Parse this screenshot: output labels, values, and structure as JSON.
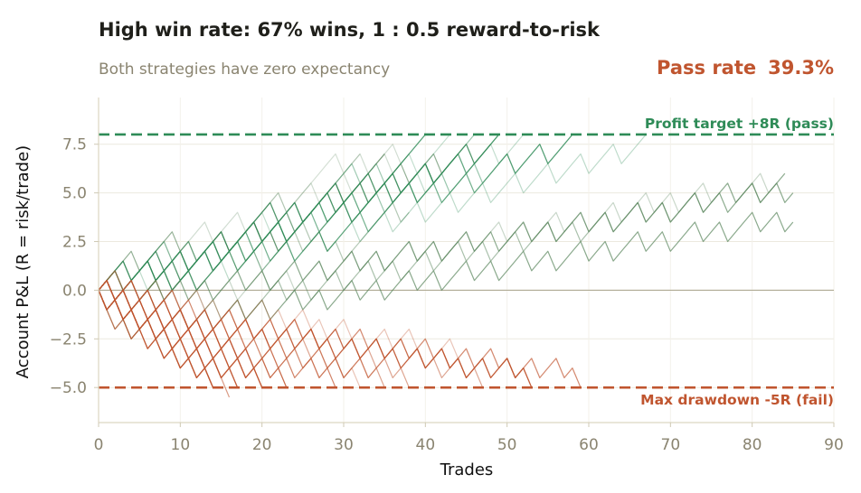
{
  "chart_data": {
    "type": "line",
    "title": "High win rate: 67% wins, 1 : 0.5 reward-to-risk",
    "subtitle": "Both strategies have zero expectancy",
    "pass_rate_label": "Pass rate",
    "pass_rate_value": "39.3%",
    "xlabel": "Trades",
    "ylabel": "Account P&L (R = risk/trade)",
    "xlim": [
      0,
      90
    ],
    "ylim": [
      -6.8,
      9.9
    ],
    "xticks": [
      0,
      10,
      20,
      30,
      40,
      50,
      60,
      70,
      80,
      90
    ],
    "yticks": [
      -5.0,
      -2.5,
      0.0,
      2.5,
      5.0,
      7.5
    ],
    "grid": true,
    "profit_target": {
      "value": 8,
      "label": "Profit target +8R  (pass)",
      "color": "#2e8b57"
    },
    "max_drawdown": {
      "value": -5,
      "label": "Max drawdown -5R  (fail)",
      "color": "#c0552f"
    },
    "win_step_R": 0.5,
    "loss_step_R": -1,
    "colors": {
      "pass": "#2e8b57",
      "fail": "#c0552f",
      "neutral": "#7d7a5a",
      "zero_line": "#b0ab95"
    },
    "paths": [
      "++-+++-+-+++++-+++++++-++++++-++",
      "+++-+++++-+-+++-+++-+++-+++++-+++++",
      "+-++-+++++-++-+++++-+-++-++-+-++++++-+",
      "-+++-+++++-+++-++++-++-+++++++-++++-+",
      "++++-+-++-+++++-+++++-++-++++-+++-+++-+++-",
      "+-++-+++-++-++++-++-+++++-++++-++++-++++-+++",
      "++-+++++-++++-+++-++++-+++-+++++-+++-+",
      "-++++++-++-++++-+++-+-++++++-+++-+++-+++-++++-++",
      "+++-++++-+-+++-++++-++++-++++++-++-+++++-+++-+++-++",
      "-+-+++++-+++++-+++++-+-++++-+++-++++++-++++-++-+++-++++-+",
      "+++-+++-+-+++++-+++++-++-++++-+++-++++++-++-+++-++++-+++-++-+",
      "++-+++-+++-++-+++++-++-+++++-+++-++-++++-+++++-+++-+++-++++-+++-+",
      "-+++-+++-+++++-++-+++-++++-++++-+++-++-+++++-+++-++++-++-+++++-+++",
      "+-++++-+-++++-+++-++++-++++-++-+++++-+++-++++-+++-+++-++++-+++-++++-++",
      "++-+++-++++-+-++++-+++-+++++-++-+++-++++-+++-++++-++-+++++-+++-++++-++-+++",
      "+-+++-++++-+++-++-+++++-+++-++++-+++-++-++++-+++++-+++-++-+++++-++++-+++-+++",
      "-+-++++-+++-++++-+++-++-+++-++++-+++++-++-+++-++++-+++-+++++-++-++++-+++-++++-+",
      "++-+++-+++-+++-+++-+++-+++-+++-+++-+++-+++-+++-+++-+++-+++-+++-+++-+++-+++-+++-+++-+",
      "-++-+++-+++-+++-+++-+++-+++-+++-+++-+++-+++-+++-+++-+++-+++-+++-+++-+++-+++-+++-+++-+",
      "+-+-++-+++-++-+++-++-+++-++-+++-++-+++-++-+++-++-+++-++-+++-++-+++-++-+++-++-+++-++-+",
      "--+-++-+++-+++-++-++++-++-+++-+++-++-+++-+++-++-+++-+++-++-+++-+++-++-+++-+++-++-+++",
      "+--++-+++-++-+++-+++-++-+++-+++-++-+++-++-+++-+++-++-+++-++-+++-+++-++-+++-++-+++-++",
      "-+--++-+++-++-+++-++-+++-++-+++-++-+++-++-+++-++-+++-++-+++-++-+++-++-+++-++-+++-++-+",
      "+-+-+-++-+-++-++-+-++-++-+-++-++-+-++-++-+-++-++-+-++-++-+-++-++-+-++-++-+-++-++-+-++",
      "-+-+-++-++-+-++-++-+-++-++-+-++-++-+-++-++-+-++-++-+-++-++-+-++-++-+-++-++-+-++-++-+-",
      "+-+--++-++-+-++-++-+-++-++-+-++-++-+-++-++-+-++-++-+-++-++-+-++-++-+-++-++-+-++-++-+",
      "-++-+-+-++-++-+-++-+-++-++-+-++-+-++-++-+-++-+-++-++-+-++-+-++-++-+-++-+-++-++-+-++-+",
      "++-+-++-+-++-+-++-++-+-++-+-++-+-++-++-+-++-+-++-+-++-++-+-++-+-++-+-++-++-+-++-+-++",
      "+-++-+-++-+-+-++-+-++-++-+-++-+-++-++-+-++-+-++-++-+-++-+-++-++-+-++-+-++-++-+-++-+-",
      "-+-++-+-++-+-+-++-++-+-++-+-+-++-++-+-++-+-+-++-++-+-++-+-+-++-++-+-++-+-+-++-++-+-+",
      "--++-+-++-+-++-+-++-+-++-+-++-+-++-+-++-+-++-+-++-+-++-+-++-+-++-+-++-+-++-+-++-+-++",
      "-+-+-+-+-++-+-++-+-++-+-++-+-++-+-++-+-++-+-++-+-++-+-++-+-++-+-++-+-++-+-++-+-++-+-",
      "+--+-++-+-++-+-++-+-++-+-++-+-++-+-++-+-++-+-++-+-++-+-++-+-++-+-++-+-++-+-++-+-++-+",
      "-++--+-+-+-+-+-++-+-+-++-+-++-+-++-+-++-+-++-+-++-+-++-+-++-+-++-+-++-+-++-+-++-+-++",
      "+-+-+-++--+-+-+-+-+-+-+-+-+-+-+-+-+-+-+-",
      "-+-+-+--+-+-+-+-+-+-+-+-+-",
      "+--+-+-+--+-+-+-+-+-+-+-+-+-+-+-+-+-+-+-+-+-+-+-+-+-+-+-+-+-+-+-+-+",
      "-+--+-+-+-+-+--+-+-+-+-+-+-+-+-+-+-+-+-+-+-+-",
      "--+-+-+-+-+-+-+-+-+-+-+-+-+--+-+-+-+-+-+-+-+-+-+-+-+-+-",
      "+-+-+-+-+-+--+-+-+-+-+-+-+-+--+-+-+-+-+-+-+-",
      "-+-+-+-+-+-+-+-+-+-+-+-+-+-+-+-+-+-+-+-+-+-+-+-+-+-+-+-+-+-+-+-+-+-+-+-+-+-+-+-+-+-+-",
      "+-+-+-+-+-+-+-+-+-+-+-+-+-+-+-+-+-+-+-+-+-+-+-+-+-+-+-+-+-+-+-+-+-+-+-+-+-+-+-+-+-+-+",
      "+-+--+-+-+-+--+-+-+-+--+-+-+-+-",
      "-+-+--+-+-+-+--+-+-+-+-+--+-+-+-+-+-",
      "+--+-+-+-+-+-+--+-+-+-+-+-+-+--+-+-+-+-+-+-+-",
      "-+-+-+-+-+-+-+-+-+--+-+-+-+-+-+-+-+-+--+-+-+-+-+-+-+-+-+-+-",
      "+-+-+-+-+-+-+-+-+-+-+-+-+-+-+-+--+-+-+-+-+-+-+-+-+-+-+-+-+-+--+-+-+-+-+",
      "-+-+-+-+-+-+-+-+-+-+-+-+-+-+-+-+-+-+-+-+-+-+--+-+-+-+-+-+-+-+-+-+-+-+-+-+-+-+-+-+-+-",
      "++-+-+-+-+-+-+-+-+-+-+-+-+-+-+-+-+-+-+-+-+-+-+-+-+-+-+-+-+-+-+-+-+--+-+-+-+-+-+-+-+-",
      "+-++-+-+-+-+-+-+-+-+-+-+-+-+-+-+-+-+-+-+-+-+-+-+-+-+-+-+-+-+-+-+-+-+-+-+-+-+--+-+-+-+"
    ]
  }
}
